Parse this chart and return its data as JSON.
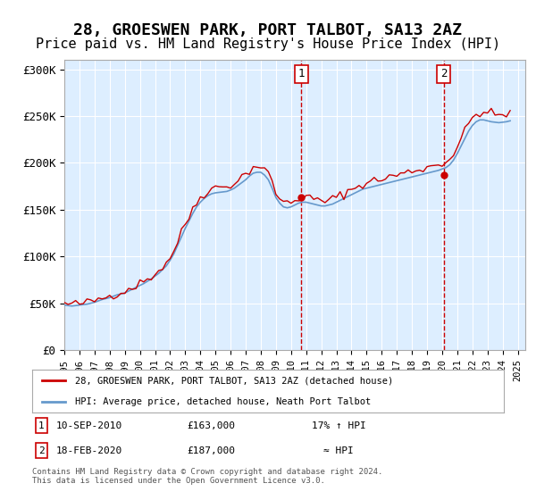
{
  "title": "28, GROESWEN PARK, PORT TALBOT, SA13 2AZ",
  "subtitle": "Price paid vs. HM Land Registry's House Price Index (HPI)",
  "title_fontsize": 13,
  "subtitle_fontsize": 11,
  "ylabel": "",
  "ylim": [
    0,
    310000
  ],
  "yticks": [
    0,
    50000,
    100000,
    150000,
    200000,
    250000,
    300000
  ],
  "ytick_labels": [
    "£0",
    "£50K",
    "£100K",
    "£150K",
    "£200K",
    "£250K",
    "£300K"
  ],
  "xlim_start": 1995.0,
  "xlim_end": 2025.5,
  "xtick_years": [
    1995,
    1996,
    1997,
    1998,
    1999,
    2000,
    2001,
    2002,
    2003,
    2004,
    2005,
    2006,
    2007,
    2008,
    2009,
    2010,
    2011,
    2012,
    2013,
    2014,
    2015,
    2016,
    2017,
    2018,
    2019,
    2020,
    2021,
    2022,
    2023,
    2024,
    2025
  ],
  "background_color": "#ffffff",
  "plot_bg_color": "#ddeeff",
  "grid_color": "#ffffff",
  "vline1_x": 2010.69,
  "vline2_x": 2020.12,
  "vline_color": "#cc0000",
  "marker1_label": "1",
  "marker2_label": "2",
  "legend_line1_label": "28, GROESWEN PARK, PORT TALBOT, SA13 2AZ (detached house)",
  "legend_line2_label": "HPI: Average price, detached house, Neath Port Talbot",
  "annotation1_num": "1",
  "annotation1_date": "10-SEP-2010",
  "annotation1_price": "£163,000",
  "annotation1_hpi": "17% ↑ HPI",
  "annotation2_num": "2",
  "annotation2_date": "18-FEB-2020",
  "annotation2_price": "£187,000",
  "annotation2_hpi": "≈ HPI",
  "footer": "Contains HM Land Registry data © Crown copyright and database right 2024.\nThis data is licensed under the Open Government Licence v3.0.",
  "red_line_color": "#cc0000",
  "blue_line_color": "#6699cc",
  "hpi_data": {
    "years": [
      1995.0,
      1995.25,
      1995.5,
      1995.75,
      1996.0,
      1996.25,
      1996.5,
      1996.75,
      1997.0,
      1997.25,
      1997.5,
      1997.75,
      1998.0,
      1998.25,
      1998.5,
      1998.75,
      1999.0,
      1999.25,
      1999.5,
      1999.75,
      2000.0,
      2000.25,
      2000.5,
      2000.75,
      2001.0,
      2001.25,
      2001.5,
      2001.75,
      2002.0,
      2002.25,
      2002.5,
      2002.75,
      2003.0,
      2003.25,
      2003.5,
      2003.75,
      2004.0,
      2004.25,
      2004.5,
      2004.75,
      2005.0,
      2005.25,
      2005.5,
      2005.75,
      2006.0,
      2006.25,
      2006.5,
      2006.75,
      2007.0,
      2007.25,
      2007.5,
      2007.75,
      2008.0,
      2008.25,
      2008.5,
      2008.75,
      2009.0,
      2009.25,
      2009.5,
      2009.75,
      2010.0,
      2010.25,
      2010.5,
      2010.75,
      2011.0,
      2011.25,
      2011.5,
      2011.75,
      2012.0,
      2012.25,
      2012.5,
      2012.75,
      2013.0,
      2013.25,
      2013.5,
      2013.75,
      2014.0,
      2014.25,
      2014.5,
      2014.75,
      2015.0,
      2015.25,
      2015.5,
      2015.75,
      2016.0,
      2016.25,
      2016.5,
      2016.75,
      2017.0,
      2017.25,
      2017.5,
      2017.75,
      2018.0,
      2018.25,
      2018.5,
      2018.75,
      2019.0,
      2019.25,
      2019.5,
      2019.75,
      2020.0,
      2020.25,
      2020.5,
      2020.75,
      2021.0,
      2021.25,
      2021.5,
      2021.75,
      2022.0,
      2022.25,
      2022.5,
      2022.75,
      2023.0,
      2023.25,
      2023.5,
      2023.75,
      2024.0,
      2024.25,
      2024.5
    ],
    "values": [
      48000,
      47500,
      47000,
      47500,
      48000,
      48500,
      49000,
      50000,
      51000,
      52500,
      54000,
      55000,
      56000,
      57500,
      59000,
      60000,
      61000,
      63000,
      65000,
      67000,
      69000,
      71000,
      73500,
      76000,
      79000,
      82000,
      86000,
      90000,
      96000,
      103000,
      112000,
      121000,
      130000,
      138000,
      146000,
      153000,
      158000,
      162000,
      165000,
      167000,
      168000,
      168500,
      169000,
      169500,
      171000,
      173000,
      176000,
      179000,
      182000,
      186000,
      189000,
      190000,
      190000,
      187000,
      182000,
      173000,
      163000,
      157000,
      153000,
      152000,
      153000,
      155000,
      157000,
      158000,
      158000,
      157000,
      156000,
      155000,
      154000,
      154000,
      155000,
      156000,
      158000,
      160000,
      162000,
      164000,
      166000,
      168000,
      170000,
      172000,
      173000,
      174000,
      175000,
      176000,
      177000,
      178000,
      179000,
      180000,
      181000,
      182000,
      183000,
      184000,
      185000,
      186000,
      187000,
      188000,
      189000,
      190000,
      191000,
      192000,
      193500,
      195000,
      198000,
      203000,
      210000,
      218000,
      226000,
      234000,
      240000,
      244000,
      246000,
      246000,
      245000,
      244000,
      243500,
      243000,
      243500,
      244000,
      245000
    ]
  },
  "property_sales": [
    {
      "year": 2010.69,
      "price": 163000
    },
    {
      "year": 2020.12,
      "price": 187000
    }
  ]
}
